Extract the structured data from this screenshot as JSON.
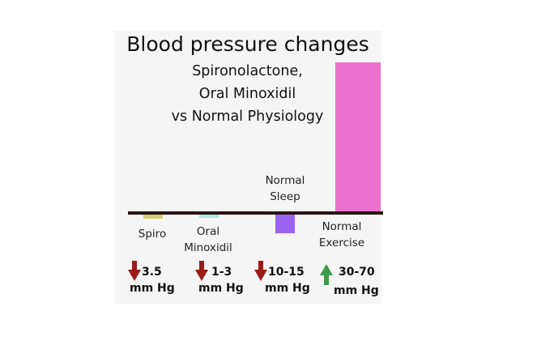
{
  "chart_data": {
    "type": "bar",
    "title": "Blood pressure changes",
    "subtitle_lines": [
      "Spironolactone,",
      "Oral Minoxidil",
      "vs Normal Physiology"
    ],
    "unit": "mm Hg",
    "categories": [
      {
        "label_lines": [
          "Spiro"
        ],
        "value": -3.5,
        "range_text": "3.5",
        "direction": "down",
        "color": "#d2cf72"
      },
      {
        "label_lines": [
          "Oral",
          "Minoxidil"
        ],
        "value": -2,
        "range_text": "1-3",
        "direction": "down",
        "color": "#a9e7eb"
      },
      {
        "label_lines": [
          "Normal",
          "Sleep"
        ],
        "value": -12.5,
        "range_text": "10-15",
        "direction": "down",
        "color": "#9b63f2"
      },
      {
        "label_lines": [
          "Normal",
          "Exercise"
        ],
        "value": 50,
        "range_text": "30-70",
        "direction": "up",
        "color": "#ea71ce"
      }
    ],
    "arrow_colors": {
      "down": "#9b1b1b",
      "up": "#3f9a4a"
    },
    "axis_color": "#2a1414",
    "ylim": [
      -15,
      50
    ]
  }
}
